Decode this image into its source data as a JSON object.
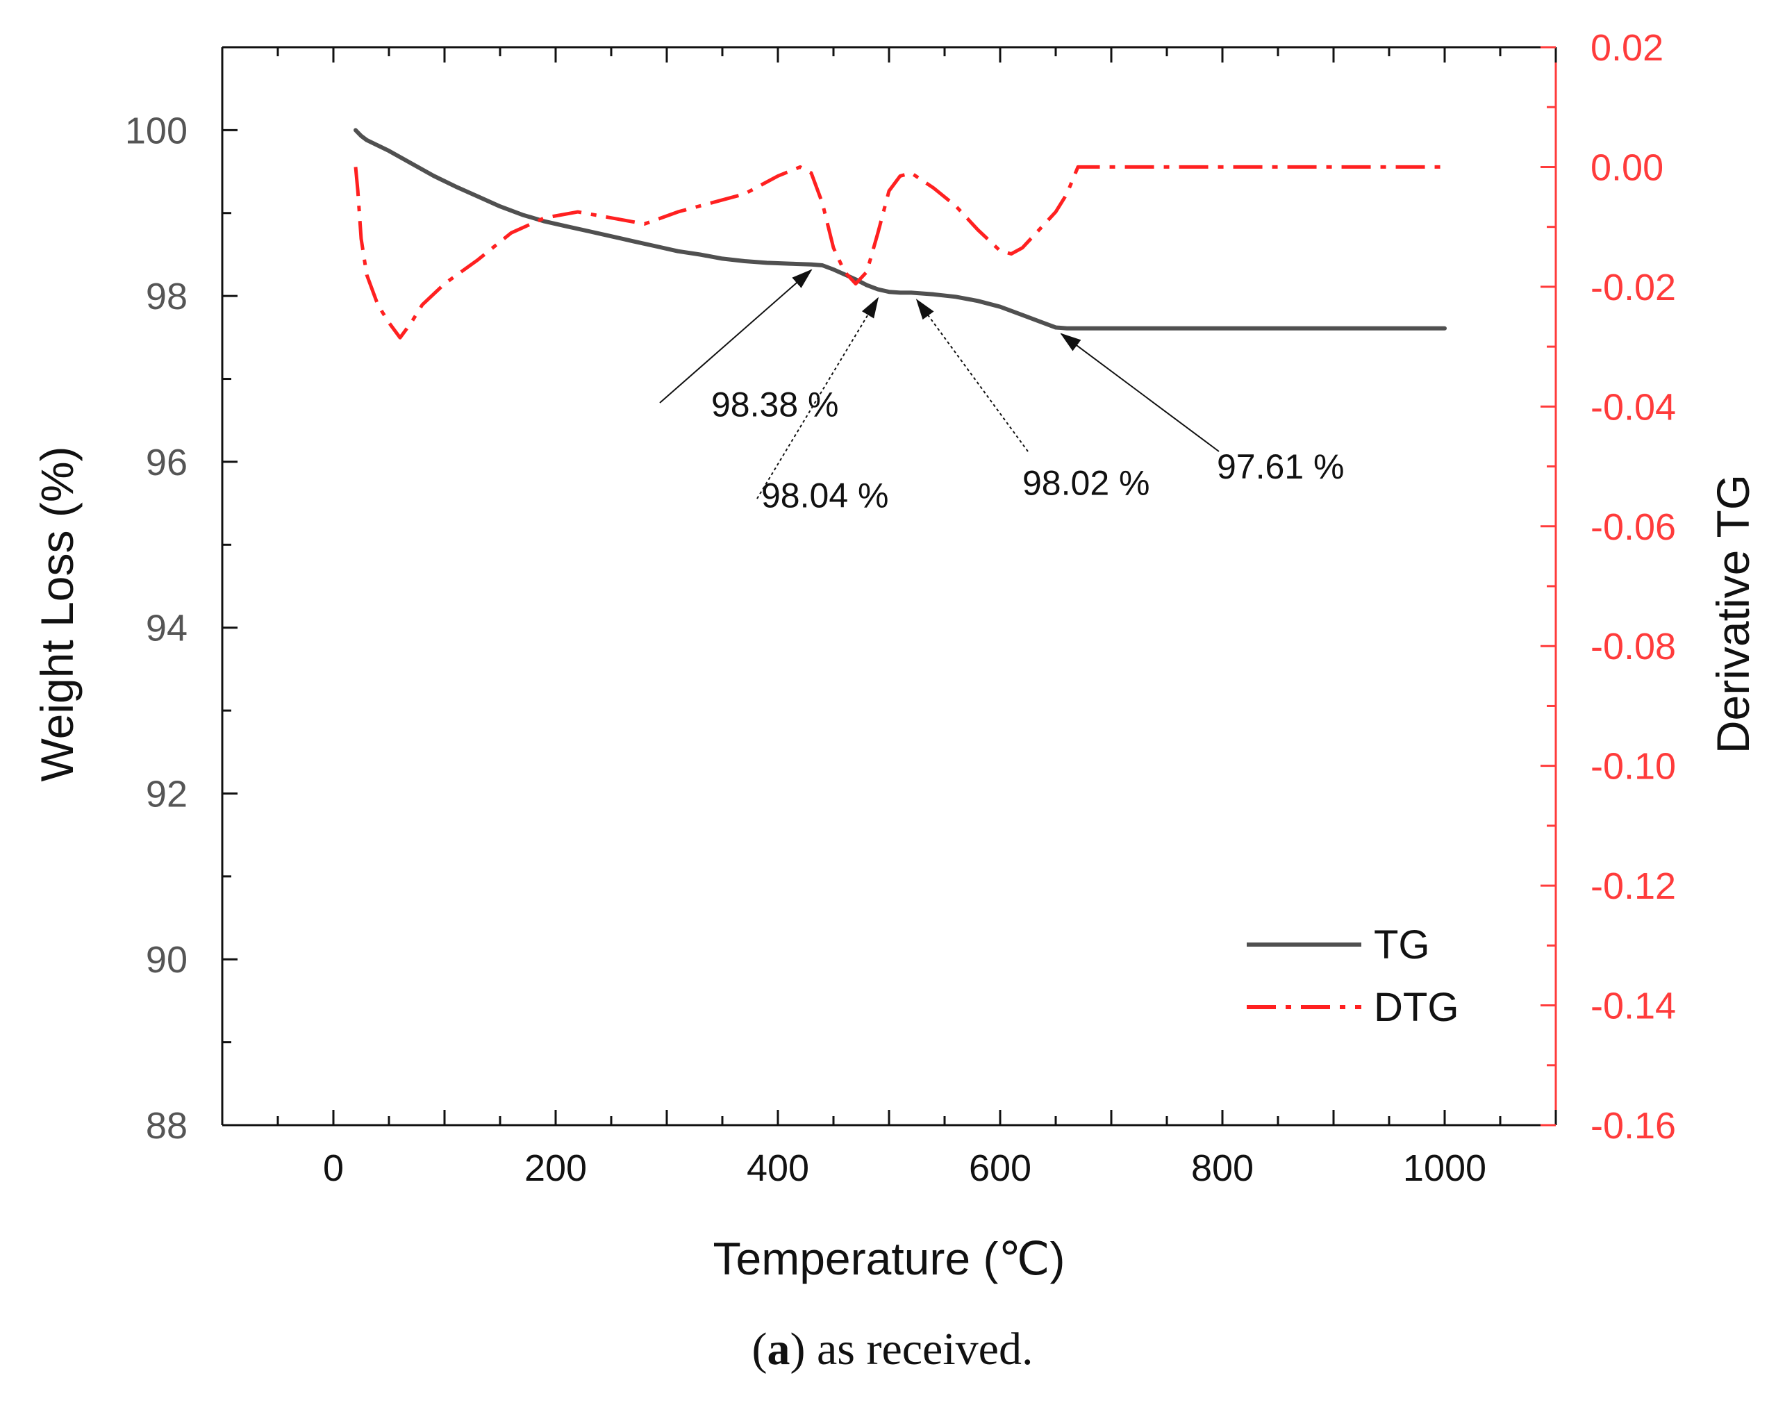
{
  "colors": {
    "tg": "#505050",
    "dtg": "#ff2020",
    "axis_left": "#111111",
    "axis_right": "#ff3b3b",
    "text": "#111111"
  },
  "chart_data": {
    "type": "line",
    "xlabel": "Temperature (℃)",
    "ylabel": "Weight Loss (%)",
    "y2label": "Derivative TG",
    "xlim": [
      -100,
      1100
    ],
    "ylim": [
      88,
      101
    ],
    "y2lim": [
      -0.16,
      0.02
    ],
    "xticks": [
      0,
      200,
      400,
      600,
      800,
      1000
    ],
    "yticks": [
      88,
      90,
      92,
      94,
      96,
      98,
      100
    ],
    "y2ticks": [
      -0.16,
      -0.14,
      -0.12,
      -0.1,
      -0.08,
      -0.06,
      -0.04,
      -0.02,
      0.0,
      0.02
    ],
    "xtick_labels": [
      "0",
      "200",
      "400",
      "600",
      "800",
      "1000"
    ],
    "ytick_labels": [
      "88",
      "90",
      "92",
      "94",
      "96",
      "98",
      "100"
    ],
    "y2tick_labels": [
      "-0.16",
      "-0.14",
      "-0.12",
      "-0.10",
      "-0.08",
      "-0.06",
      "-0.04",
      "-0.02",
      "0.00",
      "0.02"
    ],
    "series": [
      {
        "name": "TG",
        "axis": "left",
        "style": "solid",
        "x": [
          20,
          25,
          30,
          50,
          70,
          90,
          110,
          130,
          150,
          170,
          190,
          210,
          230,
          250,
          270,
          290,
          310,
          330,
          350,
          370,
          390,
          410,
          430,
          440,
          450,
          460,
          470,
          480,
          490,
          500,
          510,
          520,
          540,
          560,
          580,
          600,
          620,
          640,
          650,
          660,
          700,
          800,
          900,
          1000
        ],
        "values": [
          100.0,
          99.93,
          99.88,
          99.75,
          99.6,
          99.45,
          99.32,
          99.2,
          99.08,
          98.98,
          98.9,
          98.84,
          98.78,
          98.72,
          98.66,
          98.6,
          98.54,
          98.5,
          98.45,
          98.42,
          98.4,
          98.39,
          98.38,
          98.37,
          98.32,
          98.26,
          98.2,
          98.13,
          98.08,
          98.05,
          98.04,
          98.04,
          98.02,
          97.99,
          97.94,
          97.87,
          97.77,
          97.67,
          97.62,
          97.61,
          97.61,
          97.61,
          97.61,
          97.61
        ]
      },
      {
        "name": "DTG",
        "axis": "right",
        "style": "dash-dot",
        "x": [
          20,
          22,
          25,
          30,
          40,
          50,
          60,
          70,
          80,
          100,
          130,
          160,
          190,
          220,
          250,
          280,
          310,
          340,
          370,
          400,
          420,
          430,
          440,
          450,
          460,
          470,
          480,
          490,
          500,
          510,
          520,
          540,
          560,
          580,
          600,
          610,
          620,
          630,
          640,
          650,
          660,
          670,
          700,
          800,
          900,
          1000
        ],
        "values": [
          0.0,
          -0.004,
          -0.012,
          -0.018,
          -0.023,
          -0.026,
          -0.0285,
          -0.026,
          -0.023,
          -0.0195,
          -0.0155,
          -0.011,
          -0.0085,
          -0.0075,
          -0.0085,
          -0.0095,
          -0.0075,
          -0.006,
          -0.0045,
          -0.0015,
          0.0,
          -0.001,
          -0.006,
          -0.0135,
          -0.0175,
          -0.0195,
          -0.0175,
          -0.011,
          -0.004,
          -0.0015,
          -0.001,
          -0.0035,
          -0.0065,
          -0.0105,
          -0.014,
          -0.0145,
          -0.0135,
          -0.0115,
          -0.0095,
          -0.0075,
          -0.0045,
          0.0,
          0.0,
          0.0,
          0.0,
          0.0
        ]
      }
    ],
    "annotations": [
      {
        "text": "98.38 %",
        "point": [
          430,
          98.38
        ],
        "label_pos": [
          340,
          96.55
        ],
        "arrow": "solid"
      },
      {
        "text": "98.04 %",
        "point": [
          490,
          98.04
        ],
        "label_pos": [
          385,
          95.45
        ],
        "arrow": "dotted"
      },
      {
        "text": "98.02 %",
        "point": [
          525,
          98.02
        ],
        "label_pos": [
          620,
          95.6
        ],
        "arrow": "dotted"
      },
      {
        "text": "97.61 %",
        "point": [
          655,
          97.61
        ],
        "label_pos": [
          795,
          95.8
        ],
        "arrow": "solid"
      }
    ],
    "legend": {
      "position": "bottom-right",
      "entries": [
        "TG",
        "DTG"
      ]
    }
  },
  "caption": {
    "label": "a",
    "text": " as received."
  }
}
